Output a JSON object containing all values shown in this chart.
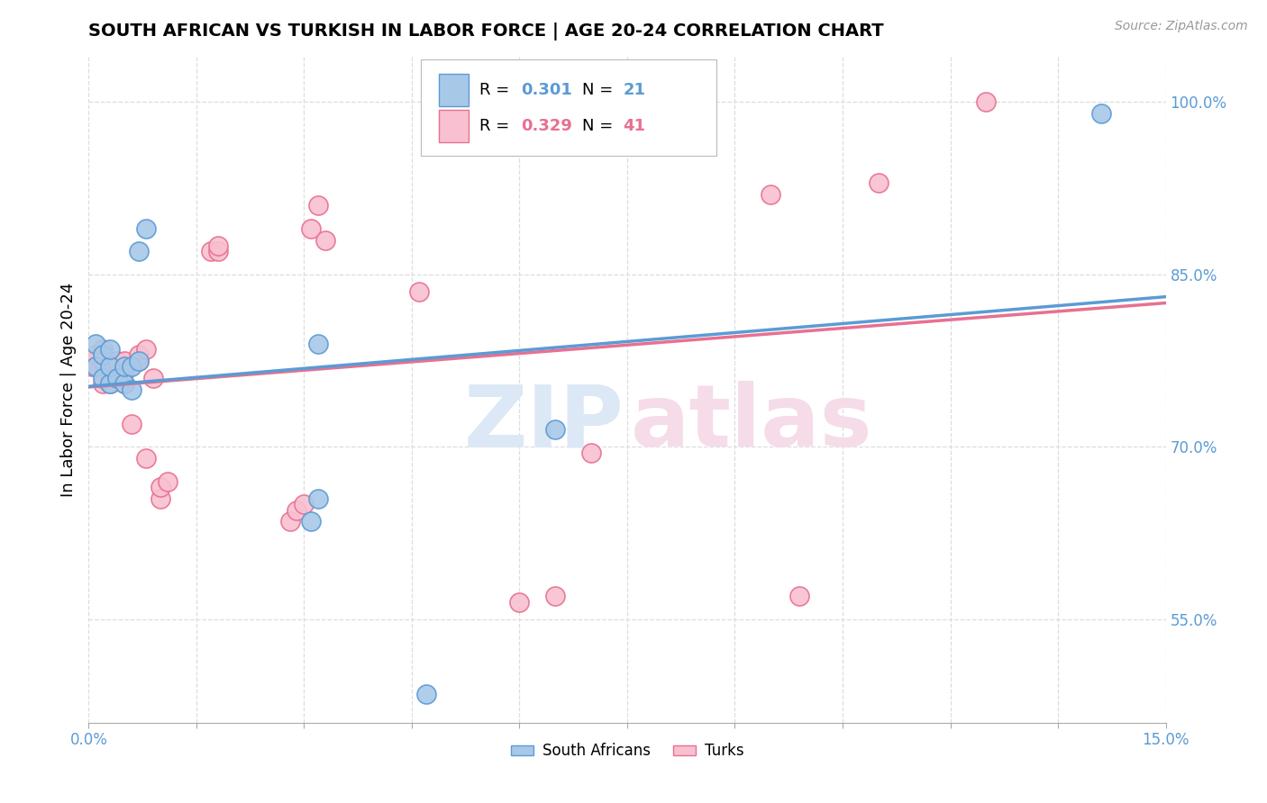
{
  "title": "SOUTH AFRICAN VS TURKISH IN LABOR FORCE | AGE 20-24 CORRELATION CHART",
  "source": "Source: ZipAtlas.com",
  "ylabel": "In Labor Force | Age 20-24",
  "xlim": [
    0.0,
    0.15
  ],
  "ylim": [
    0.46,
    1.04
  ],
  "xticks": [
    0.0,
    0.015,
    0.03,
    0.045,
    0.06,
    0.075,
    0.09,
    0.105,
    0.12,
    0.135,
    0.15
  ],
  "yticks_right": [
    0.55,
    0.7,
    0.85,
    1.0
  ],
  "ytick_labels_right": [
    "55.0%",
    "70.0%",
    "85.0%",
    "100.0%"
  ],
  "legend_r1": "0.301",
  "legend_n1": "21",
  "legend_r2": "0.329",
  "legend_n2": "41",
  "color_blue_fill": "#A8C8E8",
  "color_blue_edge": "#5B9BD5",
  "color_pink_fill": "#F8C0D0",
  "color_pink_edge": "#E87090",
  "color_axis_blue": "#5B9BD5",
  "watermark_blue": "#dce8f5",
  "watermark_pink": "#f5dce8",
  "bg_color": "#FFFFFF",
  "grid_color": "#DDDDDD",
  "south_africans_x": [
    0.001,
    0.001,
    0.002,
    0.002,
    0.003,
    0.003,
    0.003,
    0.004,
    0.005,
    0.005,
    0.006,
    0.006,
    0.007,
    0.007,
    0.008,
    0.031,
    0.032,
    0.032,
    0.047,
    0.065,
    0.141
  ],
  "south_africans_y": [
    0.77,
    0.79,
    0.76,
    0.78,
    0.755,
    0.77,
    0.785,
    0.76,
    0.755,
    0.77,
    0.75,
    0.77,
    0.775,
    0.87,
    0.89,
    0.635,
    0.655,
    0.79,
    0.485,
    0.715,
    0.99
  ],
  "turks_x": [
    0.0005,
    0.001,
    0.001,
    0.001,
    0.002,
    0.002,
    0.002,
    0.003,
    0.003,
    0.003,
    0.004,
    0.004,
    0.005,
    0.005,
    0.005,
    0.006,
    0.007,
    0.007,
    0.008,
    0.008,
    0.009,
    0.01,
    0.01,
    0.011,
    0.017,
    0.018,
    0.018,
    0.028,
    0.029,
    0.03,
    0.031,
    0.032,
    0.033,
    0.046,
    0.06,
    0.065,
    0.07,
    0.095,
    0.099,
    0.11,
    0.125
  ],
  "turks_y": [
    0.77,
    0.775,
    0.77,
    0.78,
    0.755,
    0.775,
    0.785,
    0.76,
    0.77,
    0.755,
    0.76,
    0.775,
    0.755,
    0.765,
    0.775,
    0.72,
    0.775,
    0.78,
    0.69,
    0.785,
    0.76,
    0.655,
    0.665,
    0.67,
    0.87,
    0.87,
    0.875,
    0.635,
    0.645,
    0.65,
    0.89,
    0.91,
    0.88,
    0.835,
    0.565,
    0.57,
    0.695,
    0.92,
    0.57,
    0.93,
    1.0
  ]
}
